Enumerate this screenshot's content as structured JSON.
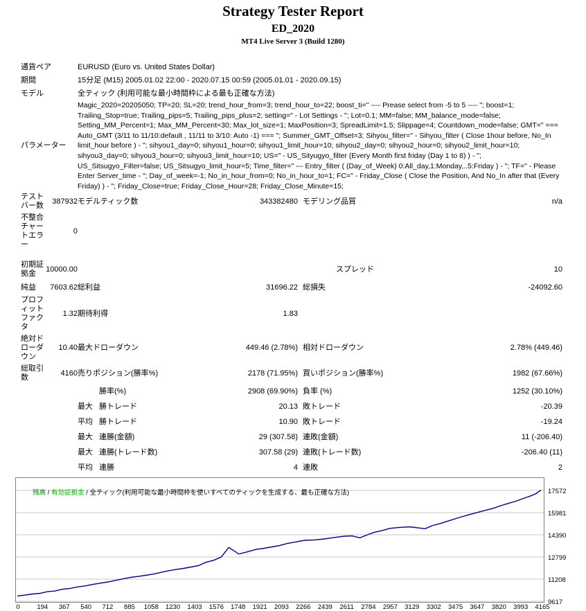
{
  "header": {
    "title": "Strategy Tester Report",
    "subtitle": "ED_2020",
    "server": "MT4 Live Server 3 (Build 1280)"
  },
  "report": {
    "symbol": {
      "label": "通貨ペア",
      "value": "EURUSD (Euro vs. United States Dollar)"
    },
    "period": {
      "label": "期間",
      "value": "15分足 (M15) 2005.01.02 22:00 - 2020.07.15 00:59 (2005.01.01 - 2020.09.15)"
    },
    "model": {
      "label": "モデル",
      "value": "全ティック (利用可能な最小時間枠による最も正確な方法)"
    },
    "parameters": {
      "label": "パラメーター",
      "value": "Magic_2020=20205050; TP=20; SL=20; trend_hour_from=3; trend_hour_to=22; boost_ti=\" ---- Prease select from -5 to 5 ---- \"; boost=1; Trailing_Stop=true; Trailing_pips=5; Trailing_pips_plus=2; setting=\" - Lot Settings - \"; Lot=0.1; MM=false; MM_balance_mode=false; Setting_MM_Percent=1; Max_MM_Percent=30; Max_lot_size=1; MaxPosition=3; SpreadLimit=1.5; Slippage=4; Countdown_mode=false; GMT=\" === Auto_GMT (3/11 to 11/10:default , 11/11 to 3/10: Auto -1) === \"; Summer_GMT_Offset=3; Sihyou_filter=\" - Sihyou_filter ( Close 1hour before, No_In limit_hour before ) - \"; sihyou1_day=0; sihyou1_hour=0; sihyou1_limit_hour=10; sihyou2_day=0; sihyou2_hour=0; sihyou2_limit_hour=10; sihyou3_day=0; sihyou3_hour=0; sihyou3_limit_hour=10; US=\" - US_Sityugyo_filter (Every Month first friday (Day 1 to 8) ) - \"; US_Sitsugyo_Filter=false; US_Sitsugyo_limit_hour=5; Time_filter=\" --- Entry_filter ( (Day_of_Week) 0:All_day,1:Monday,..5:Friday ) - \"; TF=\" - Please Enter Server_time - \"; Day_of_week=-1; No_in_hour_from=0; No_in_hour_to=1; FC=\" - Friday_Close ( Close the Position, And No_In after that (Every Friday) ) - \"; Friday_Close=true; Friday_Close_Hour=28; Friday_Close_Minute=15;"
    },
    "bars": {
      "label": "テストバー数",
      "value": "387932"
    },
    "ticks": {
      "label": "モデルティック数",
      "value": "343382480"
    },
    "quality": {
      "label": "モデリング品質",
      "value": "n/a"
    },
    "mismatch": {
      "label": "不整合チャートエラー",
      "value": "0"
    },
    "deposit": {
      "label": "初期証拠金",
      "value": "10000.00"
    },
    "spread": {
      "label": "スプレッド",
      "value": "10"
    },
    "net_profit": {
      "label": "純益",
      "value": "7603.62"
    },
    "gross_profit": {
      "label": "総利益",
      "value": "31696.22"
    },
    "gross_loss": {
      "label": "総損失",
      "value": "-24092.60"
    },
    "profit_factor": {
      "label": "プロフィットファクタ",
      "value": "1.32"
    },
    "expected_payoff": {
      "label": "期待利得",
      "value": "1.83"
    },
    "absolute_drawdown": {
      "label": "絶対ドローダウン",
      "value": "10.40"
    },
    "maximal_drawdown": {
      "label": "最大ドローダウン",
      "value": "449.46 (2.78%)"
    },
    "relative_drawdown": {
      "label": "相対ドローダウン",
      "value": "2.78% (449.46)"
    },
    "total_trades": {
      "label": "総取引数",
      "value": "4160"
    },
    "short_positions": {
      "label": "売りポジション(勝率%)",
      "value": "2178 (71.95%)"
    },
    "long_positions": {
      "label": "買いポジション(勝率%)",
      "value": "1982 (67.66%)"
    },
    "profit_trades": {
      "label": "勝率(%)",
      "value": "2908 (69.90%)"
    },
    "loss_trades": {
      "label": "負率 (%)",
      "value": "1252 (30.10%)"
    },
    "largest": {
      "modifier": "最大",
      "win_label": "勝トレード",
      "win": "20.13",
      "loss_label": "敗トレード",
      "loss": "-20.39"
    },
    "average": {
      "modifier": "平均",
      "win_label": "勝トレード",
      "win": "10.90",
      "loss_label": "敗トレード",
      "loss": "-19.24"
    },
    "max_consecutive_money": {
      "modifier": "最大",
      "win_label": "連勝(金額)",
      "win": "29 (307.58)",
      "loss_label": "連敗(金額)",
      "loss": "11 (-206.40)"
    },
    "max_consecutive_count": {
      "modifier": "最大",
      "win_label": "連勝(トレード数)",
      "win": "307.58 (29)",
      "loss_label": "連敗(トレード数)",
      "loss": "-206.40 (11)"
    },
    "avg_consecutive": {
      "modifier": "平均",
      "win_label": "連勝",
      "win": "4",
      "loss_label": "連敗",
      "loss": "2"
    }
  },
  "chart_data": {
    "type": "line",
    "legend": {
      "balance_label": "残高",
      "separator": " / ",
      "equity_label": "有効証拠金",
      "method_label": "全ティック(利用可能な最小時間枠を使いすべてのティックを生成する、最も正確な方法)"
    },
    "colors": {
      "line": "#000080",
      "grid": "#C9C9C9",
      "balance": "#008000",
      "equity": "#00B400"
    },
    "y_min": 9617,
    "y_ticks": [
      9617,
      11208,
      12799,
      14390,
      15981,
      17572
    ],
    "x_ticks": [
      0,
      194,
      367,
      540,
      712,
      885,
      1058,
      1230,
      1403,
      1576,
      1748,
      1921,
      2093,
      2266,
      2439,
      2611,
      2784,
      2957,
      3129,
      3302,
      3475,
      3647,
      3820,
      3993,
      4165
    ],
    "x_max": 4165,
    "series": [
      {
        "name": "残高",
        "x": [
          0,
          60,
          120,
          180,
          240,
          300,
          360,
          420,
          480,
          540,
          600,
          660,
          720,
          780,
          840,
          900,
          960,
          1020,
          1080,
          1140,
          1200,
          1260,
          1320,
          1380,
          1440,
          1500,
          1560,
          1620,
          1680,
          1720,
          1760,
          1820,
          1900,
          1960,
          2020,
          2080,
          2140,
          2200,
          2280,
          2360,
          2440,
          2520,
          2600,
          2660,
          2720,
          2780,
          2840,
          2900,
          2960,
          3040,
          3120,
          3180,
          3240,
          3300,
          3360,
          3440,
          3520,
          3600,
          3660,
          3720,
          3780,
          3840,
          3900,
          3960,
          4020,
          4080,
          4120,
          4160
        ],
        "y": [
          10000,
          10060,
          10140,
          10190,
          10310,
          10360,
          10480,
          10540,
          10650,
          10720,
          10830,
          10920,
          11010,
          11120,
          11230,
          11330,
          11400,
          11480,
          11570,
          11690,
          11810,
          11900,
          11980,
          12080,
          12180,
          12420,
          12560,
          12800,
          13480,
          13250,
          13010,
          13150,
          13350,
          13420,
          13520,
          13610,
          13760,
          13860,
          13990,
          14020,
          14090,
          14200,
          14290,
          14310,
          14170,
          14390,
          14580,
          14700,
          14850,
          14920,
          14960,
          14890,
          14830,
          15060,
          15200,
          15430,
          15660,
          15860,
          16010,
          16150,
          16290,
          16480,
          16640,
          16800,
          17000,
          17190,
          17350,
          17600
        ]
      }
    ]
  }
}
